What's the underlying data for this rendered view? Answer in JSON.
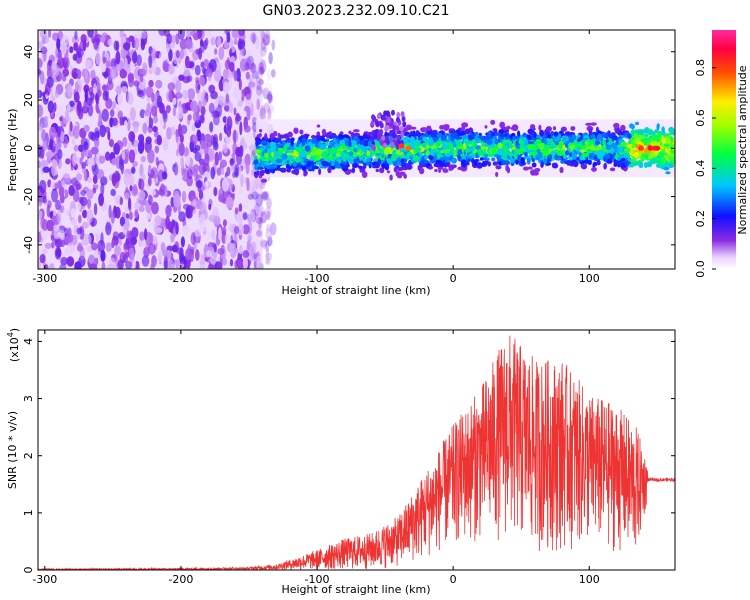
{
  "title": "GN03.2023.232.09.10.C21",
  "chart_data": [
    {
      "type": "heatmap",
      "xlabel": "Height of straight line (km)",
      "ylabel": "Frequency (Hz)",
      "xlim": [
        -305,
        163
      ],
      "ylim": [
        -50,
        49
      ],
      "xticks": [
        -300,
        -200,
        -100,
        0,
        100
      ],
      "yticks": [
        -40,
        -20,
        0,
        20,
        40
      ],
      "colorbar": {
        "label": "Normalized spectral amplitude",
        "range": [
          0.0,
          0.95
        ],
        "ticks": [
          0.0,
          0.2,
          0.4,
          0.6,
          0.8
        ],
        "colormap": "white-purple-blue-cyan-green-yellow-red-magenta"
      },
      "regions": [
        {
          "name": "noise",
          "x": [
            -305,
            -140
          ],
          "f": [
            -50,
            49
          ],
          "amplitude": 0.1
        },
        {
          "name": "signal",
          "x": [
            -145,
            163
          ],
          "f_center": 0,
          "f_halfwidth": 6,
          "amplitude": 0.35
        },
        {
          "name": "bump",
          "x": [
            -60,
            -35
          ],
          "f_center": 15,
          "amplitude": 0.15
        }
      ],
      "grid": false
    },
    {
      "type": "line",
      "xlabel": "Height of straight line (km)",
      "ylabel": "SNR (10 * v/v)",
      "yscale_label": "(x10",
      "yscale_exp": "4",
      "ylabel_suffix": ")",
      "xlim": [
        -305,
        163
      ],
      "ylim": [
        0,
        4.2
      ],
      "xticks": [
        -300,
        -200,
        -100,
        0,
        100
      ],
      "yticks": [
        0,
        1,
        2,
        3,
        4
      ],
      "color": "#ee3333",
      "envelope": {
        "x": [
          -305,
          -200,
          -150,
          -130,
          -100,
          -80,
          -60,
          -40,
          -20,
          0,
          20,
          40,
          60,
          80,
          100,
          120,
          135,
          145,
          163
        ],
        "upper": [
          0.02,
          0.03,
          0.05,
          0.1,
          0.35,
          0.55,
          0.65,
          0.95,
          1.75,
          2.55,
          3.2,
          4.2,
          3.7,
          3.7,
          3.1,
          2.9,
          2.5,
          1.7,
          1.6
        ],
        "lower": [
          0.0,
          0.0,
          0.0,
          0.0,
          0.0,
          0.0,
          0.0,
          0.05,
          0.2,
          0.4,
          0.5,
          0.5,
          0.3,
          0.3,
          0.4,
          0.3,
          0.2,
          1.5,
          1.55
        ]
      },
      "grid": false
    }
  ]
}
